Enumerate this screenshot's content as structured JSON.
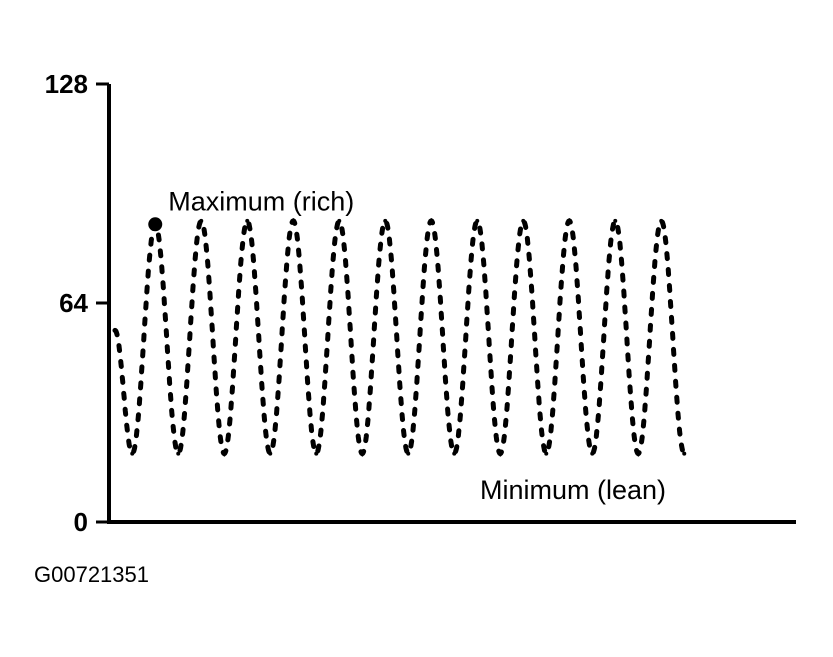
{
  "chart_data": {
    "type": "line",
    "style": "dotted",
    "title": "",
    "xlabel": "",
    "ylabel": "",
    "ylim": [
      0,
      128
    ],
    "yticks": [
      {
        "value": 128,
        "label": "128"
      },
      {
        "value": 64,
        "label": "64"
      },
      {
        "value": 0,
        "label": "0"
      }
    ],
    "series": [
      {
        "x": [
          0,
          3,
          7,
          11,
          15,
          19,
          23,
          27,
          31,
          35,
          39,
          43,
          47,
          51,
          55,
          59,
          63,
          67,
          71,
          75,
          79,
          83,
          87,
          91,
          95,
          99
        ],
        "values": [
          56,
          20,
          87,
          20,
          88,
          20,
          88,
          20,
          88,
          20,
          88,
          20,
          88,
          20,
          88,
          20,
          88,
          20,
          88,
          20,
          88,
          20,
          88,
          20,
          88,
          20
        ]
      }
    ],
    "xlim": [
      0,
      100
    ],
    "annotations": [
      {
        "text": "Maximum (rich)",
        "x": 7,
        "y": 87,
        "marker": true
      },
      {
        "text": "Minimum (lean)",
        "x": 31,
        "y": 20,
        "marker": false
      }
    ]
  },
  "figure_id": "G00721351",
  "colors": {
    "ink": "#000000",
    "background": "#ffffff"
  }
}
